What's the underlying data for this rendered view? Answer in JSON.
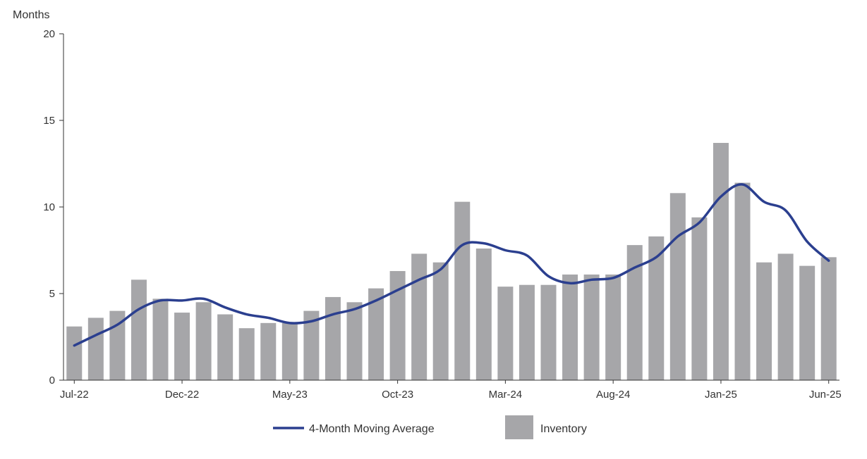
{
  "chart_data": {
    "type": "bar",
    "ylabel": "Months",
    "ylim": [
      0,
      20
    ],
    "yticks": [
      0,
      5,
      10,
      15,
      20
    ],
    "x_tick_labels": [
      "Jul-22",
      "Dec-22",
      "May-23",
      "Oct-23",
      "Mar-24",
      "Aug-24",
      "Jan-25",
      "Jun-25"
    ],
    "categories": [
      "Jul-22",
      "Aug-22",
      "Sep-22",
      "Oct-22",
      "Nov-22",
      "Dec-22",
      "Jan-23",
      "Feb-23",
      "Mar-23",
      "Apr-23",
      "May-23",
      "Jun-23",
      "Jul-23",
      "Aug-23",
      "Sep-23",
      "Oct-23",
      "Nov-23",
      "Dec-23",
      "Jan-24",
      "Feb-24",
      "Mar-24",
      "Apr-24",
      "May-24",
      "Jun-24",
      "Jul-24",
      "Aug-24",
      "Sep-24",
      "Oct-24",
      "Nov-24",
      "Dec-24",
      "Jan-25",
      "Feb-25",
      "Mar-25",
      "Apr-25",
      "May-25",
      "Jun-25"
    ],
    "series": [
      {
        "name": "Inventory",
        "type": "bar",
        "color": "#a6a6a9",
        "values": [
          3.1,
          3.6,
          4.0,
          5.8,
          4.7,
          3.9,
          4.5,
          3.8,
          3.0,
          3.3,
          3.3,
          4.0,
          4.8,
          4.5,
          5.3,
          6.3,
          7.3,
          6.8,
          10.3,
          7.6,
          5.4,
          5.5,
          5.5,
          6.1,
          6.1,
          6.1,
          7.8,
          8.3,
          10.8,
          9.4,
          13.7,
          11.4,
          6.8,
          7.3,
          6.6,
          7.1
        ]
      },
      {
        "name": "4-Month Moving Average",
        "type": "line",
        "color": "#2b3f8f",
        "values": [
          2.0,
          2.6,
          3.2,
          4.1,
          4.6,
          4.6,
          4.7,
          4.2,
          3.8,
          3.6,
          3.3,
          3.4,
          3.8,
          4.1,
          4.6,
          5.2,
          5.8,
          6.4,
          7.8,
          7.9,
          7.5,
          7.2,
          6.0,
          5.6,
          5.8,
          5.9,
          6.5,
          7.1,
          8.3,
          9.1,
          10.6,
          11.3,
          10.3,
          9.8,
          8.0,
          6.9
        ]
      }
    ],
    "legend": {
      "position": "bottom",
      "items": [
        "4-Month Moving Average",
        "Inventory"
      ]
    }
  }
}
